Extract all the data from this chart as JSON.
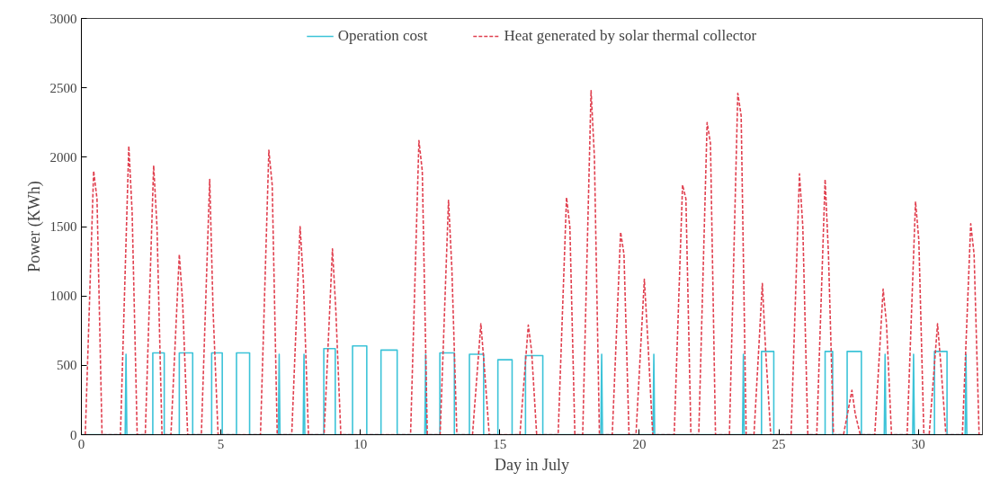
{
  "chart_data": {
    "type": "line",
    "xlabel": "Day in July",
    "ylabel": "Power (KWh)",
    "xlim": [
      0,
      32.3
    ],
    "ylim": [
      0,
      3000
    ],
    "xticks": [
      0,
      5,
      10,
      15,
      20,
      25,
      30
    ],
    "yticks": [
      0,
      500,
      1000,
      1500,
      2000,
      2500,
      3000
    ],
    "grid": false,
    "legend": "top",
    "marker": "none",
    "series": [
      {
        "name": "Operation cost",
        "color": "#3cc3d8",
        "line_style": "solid",
        "x": [
          0,
          1.57,
          1.6,
          1.63,
          2.56,
          2.56,
          2.97,
          2.97,
          3.51,
          3.51,
          3.99,
          3.99,
          4.67,
          4.67,
          5.05,
          5.05,
          5.56,
          5.56,
          6.03,
          6.03,
          7.06,
          7.09,
          7.12,
          7.95,
          7.98,
          8.01,
          8.69,
          8.69,
          9.1,
          9.1,
          9.72,
          9.72,
          10.23,
          10.23,
          10.74,
          10.74,
          11.32,
          11.32,
          12.31,
          12.34,
          12.37,
          12.85,
          12.85,
          13.37,
          13.37,
          13.91,
          13.91,
          14.42,
          14.42,
          14.93,
          14.93,
          15.44,
          15.44,
          15.92,
          15.92,
          16.54,
          16.54,
          18.62,
          18.65,
          18.68,
          20.49,
          20.52,
          20.55,
          23.7,
          23.73,
          23.76,
          24.38,
          24.38,
          24.82,
          24.82,
          26.66,
          26.66,
          26.93,
          26.93,
          27.45,
          27.45,
          27.96,
          27.96,
          28.78,
          28.81,
          28.84,
          29.8,
          29.83,
          29.86,
          30.58,
          30.58,
          31.03,
          31.03,
          31.68,
          31.71,
          31.74,
          32.2
        ],
        "values": [
          0,
          0,
          580,
          0,
          0,
          590,
          590,
          0,
          0,
          590,
          590,
          0,
          0,
          590,
          590,
          0,
          0,
          590,
          590,
          0,
          0,
          580,
          0,
          0,
          580,
          0,
          0,
          620,
          620,
          0,
          0,
          640,
          640,
          0,
          0,
          610,
          610,
          0,
          0,
          580,
          0,
          0,
          590,
          590,
          0,
          0,
          580,
          580,
          0,
          0,
          540,
          540,
          0,
          0,
          570,
          570,
          0,
          0,
          580,
          0,
          0,
          580,
          0,
          0,
          580,
          0,
          0,
          600,
          600,
          0,
          0,
          600,
          600,
          0,
          0,
          600,
          600,
          0,
          0,
          580,
          0,
          0,
          580,
          0,
          0,
          600,
          600,
          0,
          0,
          580,
          0,
          0
        ]
      },
      {
        "name": "Heat generated by solar thermal collector",
        "color": "#e0404f",
        "line_style": "dashed",
        "x": [
          0.14,
          0.44,
          0.56,
          0.74,
          1.4,
          1.7,
          1.82,
          2.0,
          2.29,
          2.59,
          2.71,
          2.89,
          3.21,
          3.51,
          3.63,
          3.81,
          4.3,
          4.6,
          4.72,
          4.9,
          6.42,
          6.72,
          6.84,
          7.02,
          7.54,
          7.84,
          7.96,
          8.14,
          8.7,
          9.0,
          9.12,
          9.3,
          11.8,
          12.1,
          12.22,
          12.4,
          12.86,
          13.16,
          13.28,
          13.46,
          14.02,
          14.32,
          14.44,
          14.62,
          15.72,
          16.02,
          16.14,
          16.32,
          17.09,
          17.39,
          17.51,
          17.69,
          17.97,
          18.27,
          18.39,
          18.57,
          19.03,
          19.33,
          19.45,
          19.63,
          19.88,
          20.18,
          20.3,
          20.48,
          21.25,
          21.55,
          21.67,
          21.85,
          22.13,
          22.43,
          22.55,
          22.73,
          23.23,
          23.53,
          23.65,
          23.83,
          24.11,
          24.41,
          24.53,
          24.71,
          25.44,
          25.74,
          25.86,
          26.04,
          26.36,
          26.66,
          26.78,
          26.96,
          27.32,
          27.62,
          27.74,
          27.92,
          28.44,
          28.74,
          28.86,
          29.04,
          29.6,
          29.9,
          30.02,
          30.2,
          30.39,
          30.69,
          30.81,
          30.99,
          31.58,
          31.88,
          32.0,
          32.18
        ],
        "values": [
          0,
          1900,
          1700,
          0,
          0,
          2080,
          1600,
          0,
          0,
          1940,
          1500,
          0,
          0,
          1300,
          950,
          0,
          0,
          1840,
          900,
          0,
          0,
          2050,
          1800,
          0,
          0,
          1500,
          1100,
          0,
          0,
          1340,
          900,
          0,
          0,
          2120,
          1900,
          0,
          0,
          1690,
          1200,
          0,
          0,
          800,
          500,
          0,
          0,
          790,
          600,
          0,
          0,
          1710,
          1500,
          0,
          0,
          2480,
          2000,
          0,
          0,
          1460,
          1300,
          0,
          0,
          1120,
          700,
          0,
          0,
          1800,
          1700,
          0,
          0,
          2250,
          2100,
          0,
          0,
          2460,
          2300,
          0,
          0,
          1090,
          600,
          0,
          0,
          1880,
          1500,
          0,
          0,
          1840,
          1300,
          0,
          0,
          320,
          150,
          0,
          0,
          1050,
          800,
          0,
          0,
          1680,
          1400,
          0,
          0,
          800,
          500,
          0,
          0,
          1520,
          1300,
          0
        ]
      }
    ]
  }
}
